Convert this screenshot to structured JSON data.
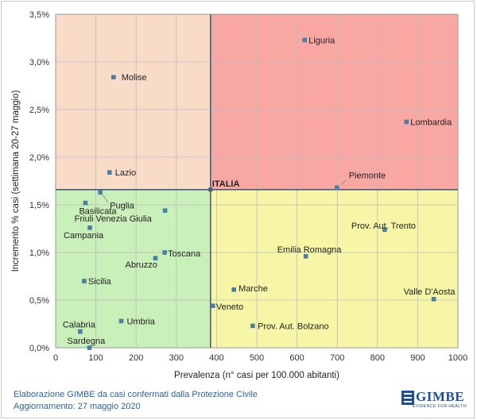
{
  "chart_data": {
    "type": "scatter",
    "xlabel": "Prevalenza  (n° casi per 100.000 abitanti)",
    "ylabel": "Incremento % casi (settimana 20-27 maggio)",
    "xlim": [
      0,
      1000
    ],
    "ylim": [
      0,
      3.5
    ],
    "x_ticks": [
      "0",
      "100",
      "200",
      "300",
      "400",
      "500",
      "600",
      "700",
      "800",
      "900",
      "1000"
    ],
    "y_ticks": [
      "0,0%",
      "0,5%",
      "1,0%",
      "1,5%",
      "2,0%",
      "2,5%",
      "3,0%",
      "3,5%"
    ],
    "reference": {
      "name": "ITALIA",
      "x": 385,
      "y": 1.66
    },
    "quadrant_colors": {
      "top_left": "#f9dcc8",
      "top_right": "#f8a7a2",
      "bottom_left": "#c9f0b9",
      "bottom_right": "#f7f6a6"
    },
    "point_color": "#4a7fa4",
    "line_color": "#475d7a",
    "points": [
      {
        "name": "Liguria",
        "x": 619,
        "y": 3.23
      },
      {
        "name": "Molise",
        "x": 144,
        "y": 2.84
      },
      {
        "name": "Lombardia",
        "x": 872,
        "y": 2.37
      },
      {
        "name": "Lazio",
        "x": 134,
        "y": 1.84
      },
      {
        "name": "Piemonte",
        "x": 699,
        "y": 1.68
      },
      {
        "name": "Puglia",
        "x": 111,
        "y": 1.63
      },
      {
        "name": "Basilicata",
        "x": 74,
        "y": 1.52
      },
      {
        "name": "Friuli Venezia Giulia",
        "x": 272,
        "y": 1.44
      },
      {
        "name": "Campania",
        "x": 85,
        "y": 1.26
      },
      {
        "name": "Prov. Aut. Trento",
        "x": 818,
        "y": 1.24
      },
      {
        "name": "Toscana",
        "x": 271,
        "y": 1.0
      },
      {
        "name": "Emilia Romagna",
        "x": 622,
        "y": 0.96
      },
      {
        "name": "Abruzzo",
        "x": 248,
        "y": 0.94
      },
      {
        "name": "Sicilia",
        "x": 71,
        "y": 0.7
      },
      {
        "name": "Marche",
        "x": 443,
        "y": 0.61
      },
      {
        "name": "Valle D'Aosta",
        "x": 940,
        "y": 0.51
      },
      {
        "name": "Veneto",
        "x": 391,
        "y": 0.44
      },
      {
        "name": "Umbria",
        "x": 163,
        "y": 0.28
      },
      {
        "name": "Prov. Aut. Bolzano",
        "x": 490,
        "y": 0.23
      },
      {
        "name": "Calabria",
        "x": 61,
        "y": 0.17
      },
      {
        "name": "Sardegna",
        "x": 84,
        "y": 0.0
      }
    ]
  },
  "footer": {
    "source": "Elaborazione GIMBE da casi confermati dalla Protezione Civile",
    "updated": "Aggiornamento: 27 maggio 2020"
  },
  "logo": {
    "name": "GIMBE",
    "tagline": "EVIDENCE FOR HEALTH"
  }
}
